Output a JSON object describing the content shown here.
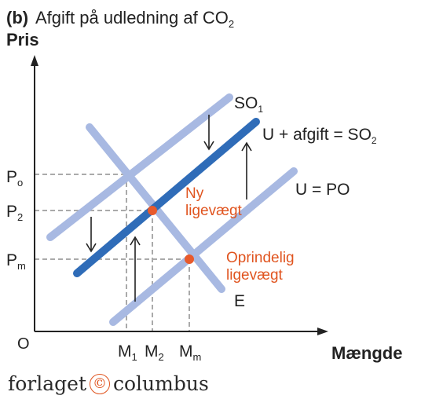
{
  "title": {
    "prefix": "(b)",
    "text": "Afgift på udledning af CO",
    "sub": "2"
  },
  "axes": {
    "y_label": "Pris",
    "x_label": "Mængde",
    "origin": "O"
  },
  "y_ticks": [
    {
      "main": "P",
      "sub": "o"
    },
    {
      "main": "P",
      "sub": "2"
    },
    {
      "main": "P",
      "sub": "m"
    }
  ],
  "x_ticks": [
    {
      "main": "M",
      "sub": "1"
    },
    {
      "main": "M",
      "sub": "2"
    },
    {
      "main": "M",
      "sub": "m"
    }
  ],
  "curves": {
    "so1": {
      "main": "SO",
      "sub": "1"
    },
    "tax": {
      "main": "U + afgift = SO",
      "sub": "2"
    },
    "upo": {
      "text": "U = PO"
    },
    "demand": {
      "text": "E"
    }
  },
  "annotations": {
    "new_eq": [
      "Ny",
      "ligevægt"
    ],
    "orig_eq": [
      "Oprindelig",
      "ligevægt"
    ]
  },
  "colors": {
    "light_curve": "#a8b9e2",
    "tax_curve": "#2f6cb8",
    "point": "#e85a2c",
    "annotation": "#e0541f",
    "axis": "#222222",
    "guide": "#aaaaaa"
  },
  "footer": {
    "left": "forlaget",
    "symbol": "©",
    "right": "columbus"
  }
}
